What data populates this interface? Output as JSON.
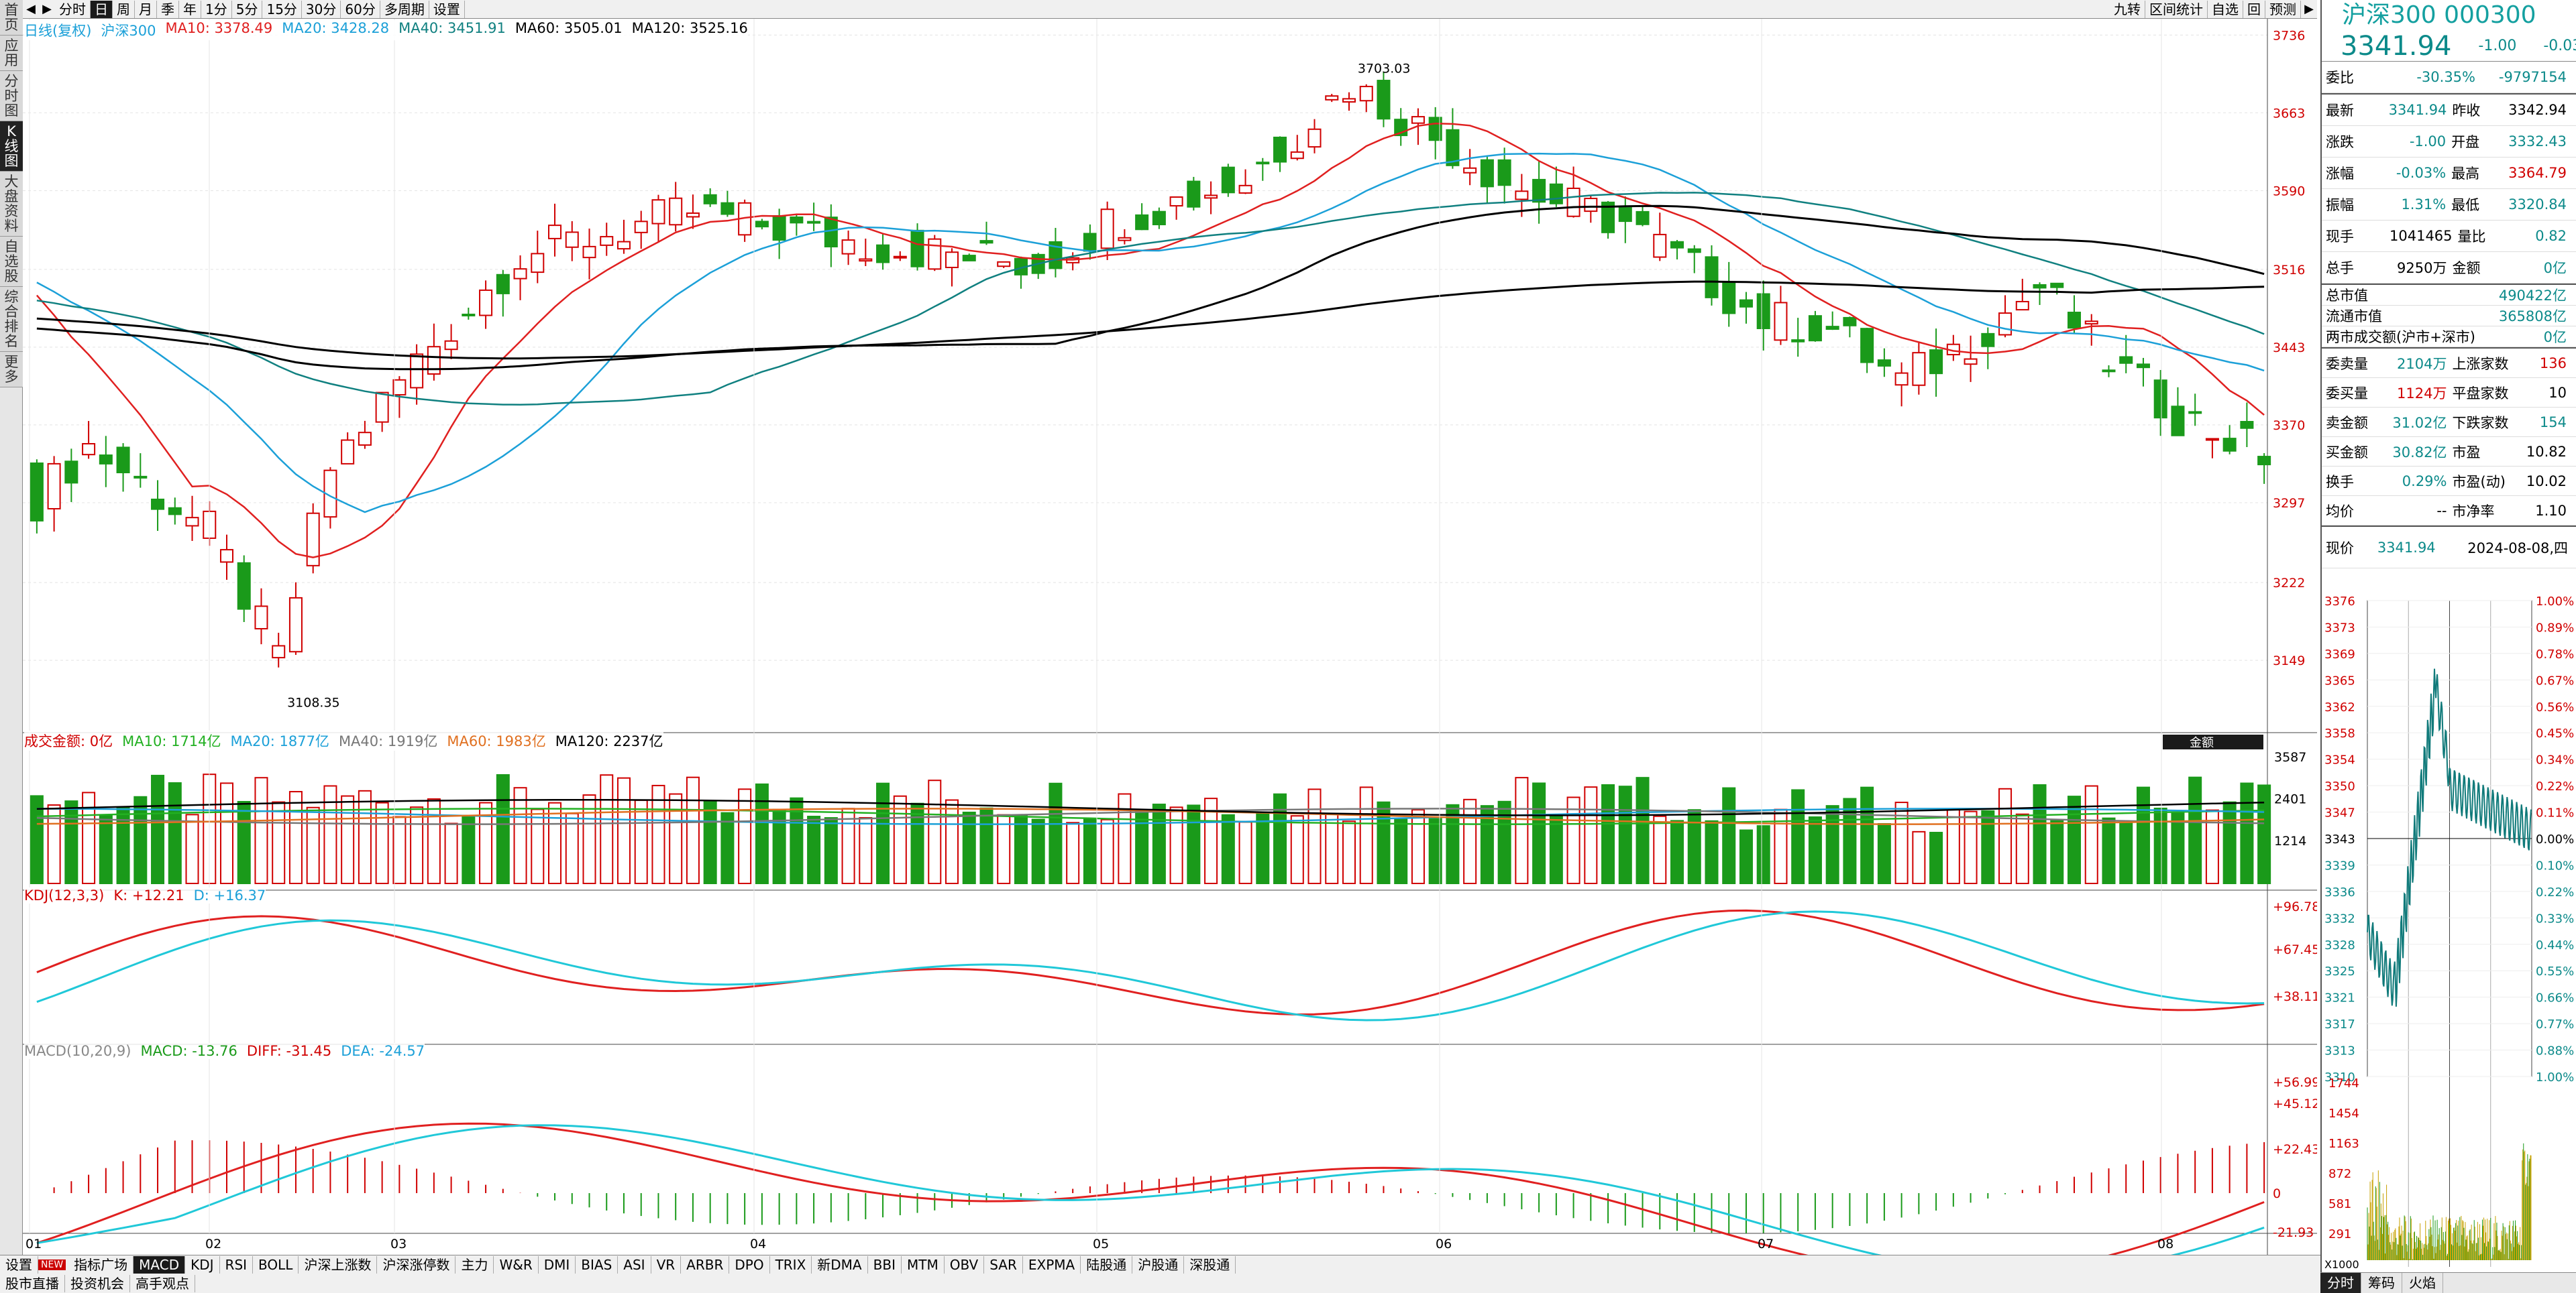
{
  "left_tabs": [
    "首页",
    "应用",
    "分时图",
    "K线图",
    "大盘资料",
    "自选股",
    "综合排名",
    "更多"
  ],
  "toolbar": {
    "items": [
      "分时",
      "日",
      "周",
      "月",
      "季",
      "年",
      "1分",
      "5分",
      "15分",
      "30分",
      "60分",
      "多周期",
      "设置"
    ],
    "right_items": [
      "九转",
      "区间统计",
      "自选",
      "回",
      "预测"
    ]
  },
  "main_header": {
    "type": "日线(复权)",
    "name": "沪深300",
    "ma": [
      {
        "label": "MA10: 3378.49",
        "color": "#e02020"
      },
      {
        "label": "MA20: 3428.28",
        "color": "#1ca0d8"
      },
      {
        "label": "MA40: 3451.91",
        "color": "#108080"
      },
      {
        "label": "MA60: 3505.01",
        "color": "#000000"
      },
      {
        "label": "MA120: 3525.16",
        "color": "#000000"
      }
    ]
  },
  "price_axis": [
    "3736",
    "3663",
    "3590",
    "3516",
    "3443",
    "3370",
    "3297",
    "3222",
    "3149"
  ],
  "high_label": "3703.03",
  "low_label": "3108.35",
  "vol_header": {
    "name": "成交金额: 0亿",
    "ma": [
      {
        "label": "MA10: 1714亿",
        "color": "#22b022"
      },
      {
        "label": "MA20: 1877亿",
        "color": "#1ca0d8"
      },
      {
        "label": "MA40: 1919亿",
        "color": "#777777"
      },
      {
        "label": "MA60: 1983亿",
        "color": "#e07020"
      },
      {
        "label": "MA120: 2237亿",
        "color": "#000000"
      }
    ],
    "tag": "金额"
  },
  "vol_axis": [
    "3587",
    "2401",
    "1214"
  ],
  "kdj_header": {
    "name": "KDJ(12,3,3)",
    "k": "K: +12.21",
    "d": "D: +16.37"
  },
  "kdj_axis": [
    "+96.78",
    "+67.45",
    "+38.11"
  ],
  "macd_header": {
    "name": "MACD(10,20,9)",
    "macd": "MACD: -13.76",
    "diff": "DIFF: -31.45",
    "dea": "DEA: -24.57"
  },
  "macd_axis": [
    "+56.99",
    "+45.12",
    "+22.43",
    "0",
    "-21.93"
  ],
  "months": [
    "01",
    "02",
    "03",
    "04",
    "05",
    "06",
    "07",
    "08"
  ],
  "indicator_tabs": [
    "NEW",
    "指标广场",
    "MACD",
    "KDJ",
    "RSI",
    "BOLL",
    "沪深上涨数",
    "沪深涨停数",
    "主力",
    "W&R",
    "DMI",
    "BIAS",
    "ASI",
    "VR",
    "ARBR",
    "DPO",
    "TRIX",
    "新DMA",
    "BBI",
    "MTM",
    "OBV",
    "SAR",
    "EXPMA",
    "陆股通",
    "沪股通",
    "深股通"
  ],
  "bottom_tabs": [
    "股市直播",
    "投资机会",
    "高手观点"
  ],
  "quote": {
    "title": "沪深300 000300",
    "price": "3341.94",
    "change": "-1.00",
    "pct": "-0.03%",
    "weibi": {
      "k": "委比",
      "v1": "-30.35%",
      "v2": "-9797154"
    },
    "rows": [
      {
        "k1": "最新",
        "v1": "3341.94",
        "c1": "g",
        "k2": "昨收",
        "v2": "3342.94",
        "c2": ""
      },
      {
        "k1": "涨跌",
        "v1": "-1.00",
        "c1": "g",
        "k2": "开盘",
        "v2": "3332.43",
        "c2": "g"
      },
      {
        "k1": "涨幅",
        "v1": "-0.03%",
        "c1": "g",
        "k2": "最高",
        "v2": "3364.79",
        "c2": "r"
      },
      {
        "k1": "振幅",
        "v1": "1.31%",
        "c1": "g",
        "k2": "最低",
        "v2": "3320.84",
        "c2": "g"
      },
      {
        "k1": "现手",
        "v1": "1041465",
        "c1": "",
        "k2": "量比",
        "v2": "0.82",
        "c2": "g"
      },
      {
        "k1": "总手",
        "v1": "9250万",
        "c1": "",
        "k2": "金额",
        "v2": "0亿",
        "c2": "g"
      }
    ],
    "rows2": [
      {
        "k": "总市值",
        "v": "490422亿",
        "c": "g"
      },
      {
        "k": "流通市值",
        "v": "365808亿",
        "c": "g"
      },
      {
        "k": "两市成交额(沪市+深市)",
        "v": "0亿",
        "c": "g"
      }
    ],
    "rows3": [
      {
        "k1": "委卖量",
        "v1": "2104万",
        "c1": "g",
        "k2": "上涨家数",
        "v2": "136",
        "c2": "r"
      },
      {
        "k1": "委买量",
        "v1": "1124万",
        "c1": "r",
        "k2": "平盘家数",
        "v2": "10",
        "c2": ""
      },
      {
        "k1": "卖金额",
        "v1": "31.02亿",
        "c1": "g",
        "k2": "下跌家数",
        "v2": "154",
        "c2": "g"
      },
      {
        "k1": "买金额",
        "v1": "30.82亿",
        "c1": "g",
        "k2": "市盈",
        "v2": "10.82",
        "c2": ""
      },
      {
        "k1": "换手",
        "v1": "0.29%",
        "c1": "g",
        "k2": "市盈(动)",
        "v2": "10.02",
        "c2": ""
      },
      {
        "k1": "均价",
        "v1": "--",
        "c1": "",
        "k2": "市净率",
        "v2": "1.10",
        "c2": ""
      }
    ],
    "now_label": "现价",
    "now_price": "3341.94",
    "date": "2024-08-08,四"
  },
  "intraday": {
    "left_axis": [
      "3376",
      "3373",
      "3369",
      "3365",
      "3362",
      "3358",
      "3354",
      "3350",
      "3347",
      "3343",
      "3339",
      "3336",
      "3332",
      "3328",
      "3325",
      "3321",
      "3317",
      "3313",
      "3310"
    ],
    "right_axis": [
      "1.00%",
      "0.89%",
      "0.78%",
      "0.67%",
      "0.56%",
      "0.45%",
      "0.34%",
      "0.22%",
      "0.11%",
      "0.00%",
      "0.10%",
      "0.22%",
      "0.33%",
      "0.44%",
      "0.55%",
      "0.66%",
      "0.77%",
      "0.88%",
      "1.00%"
    ],
    "vol_axis": [
      "1744",
      "1454",
      "1163",
      "872",
      "581",
      "291"
    ],
    "unit": "X1000"
  },
  "right_tabs": [
    "分时",
    "筹码",
    "火焰"
  ],
  "chart_data": {
    "type": "candlestick",
    "series": [
      {
        "name": "沪深300",
        "ohlc": []
      }
    ]
  }
}
